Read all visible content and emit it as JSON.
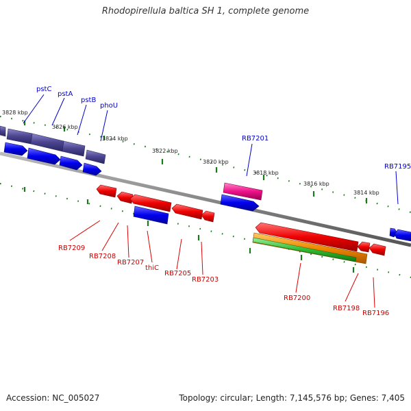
{
  "title": "Rhodopirellula baltica SH 1, complete genome",
  "footer": {
    "accession": "Accession: NC_005027",
    "summary": "Topology: circular; Length: 7,145,576 bp; Genes: 7,405"
  },
  "colors": {
    "forward_label": "#0000cc",
    "reverse_label": "#cc0000",
    "backbone": "#888888",
    "tick": "#1a7a1a",
    "operon_dark": "#4a4490",
    "forward_gene": "#0000ee",
    "reverse_gene": "#ee0000",
    "magenta_gene": "#ee1188",
    "orange_gene": "#ee8800",
    "green_gene": "#33bb33"
  },
  "scale_labels": [
    "3828 kbp",
    "3826 kbp",
    "3824 kbp",
    "3822 kbp",
    "3820 kbp",
    "3818 kbp",
    "3816 kbp",
    "3814 kbp"
  ],
  "forward_labels": [
    "pstC",
    "pstA",
    "pstB",
    "phoU",
    "RB7201",
    "RB7195"
  ],
  "reverse_labels": [
    "RB7209",
    "RB7208",
    "RB7207",
    "thiC",
    "RB7205",
    "RB7203",
    "RB7200",
    "RB7198",
    "RB7196"
  ]
}
